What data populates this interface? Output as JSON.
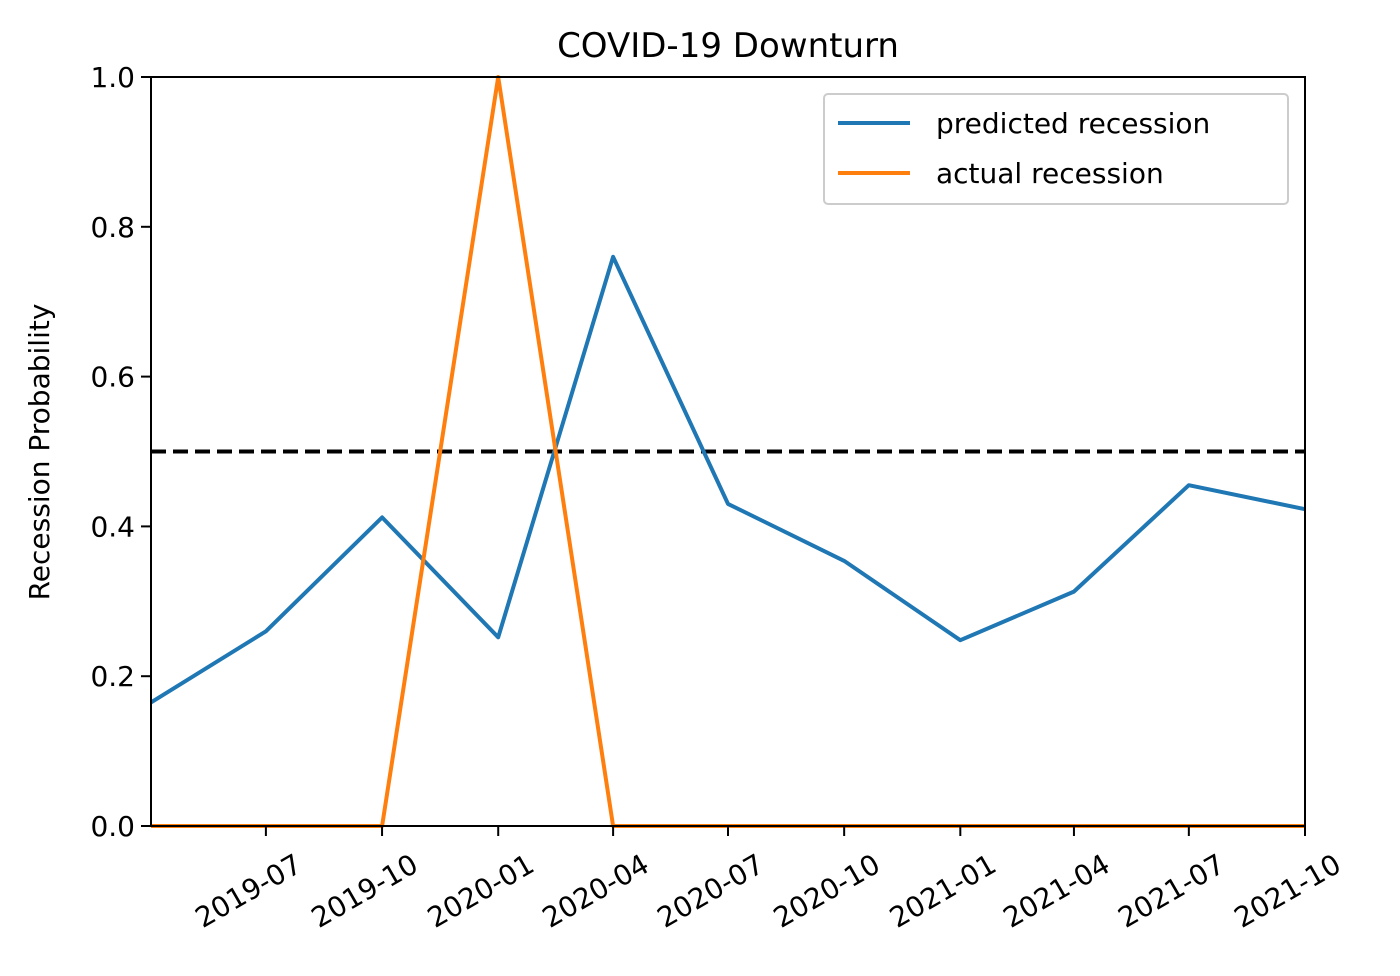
{
  "chart_data": {
    "type": "line",
    "title": "COVID-19 Downturn",
    "xlabel": "",
    "ylabel": "Recession Probability",
    "xlim": [
      "2019-04-01",
      "2021-10-01"
    ],
    "ylim": [
      0,
      1
    ],
    "x_ticks": [
      "2019-07",
      "2019-10",
      "2020-01",
      "2020-04",
      "2020-07",
      "2020-10",
      "2021-01",
      "2021-04",
      "2021-07",
      "2021-10"
    ],
    "y_ticks": [
      "0.0",
      "0.2",
      "0.4",
      "0.6",
      "0.8",
      "1.0"
    ],
    "grid": false,
    "legend_position": "top-right",
    "threshold": {
      "value": 0.5,
      "style": "dashed",
      "color": "#000000"
    },
    "series": [
      {
        "name": "predicted recession",
        "color": "#1f77b4",
        "x": [
          "2019-04-01",
          "2019-07-01",
          "2019-10-01",
          "2020-01-01",
          "2020-04-01",
          "2020-07-01",
          "2020-10-01",
          "2021-01-01",
          "2021-04-01",
          "2021-07-01",
          "2021-10-01"
        ],
        "y": [
          0.165,
          0.26,
          0.412,
          0.252,
          0.76,
          0.43,
          0.354,
          0.248,
          0.313,
          0.455,
          0.423
        ]
      },
      {
        "name": "actual recession",
        "color": "#ff7f0e",
        "x": [
          "2019-04-01",
          "2019-07-01",
          "2019-10-01",
          "2020-01-01",
          "2020-04-01",
          "2020-07-01",
          "2020-10-01",
          "2021-01-01",
          "2021-04-01",
          "2021-07-01",
          "2021-10-01"
        ],
        "y": [
          0,
          0,
          0,
          1,
          0,
          0,
          0,
          0,
          0,
          0,
          0
        ]
      }
    ]
  }
}
